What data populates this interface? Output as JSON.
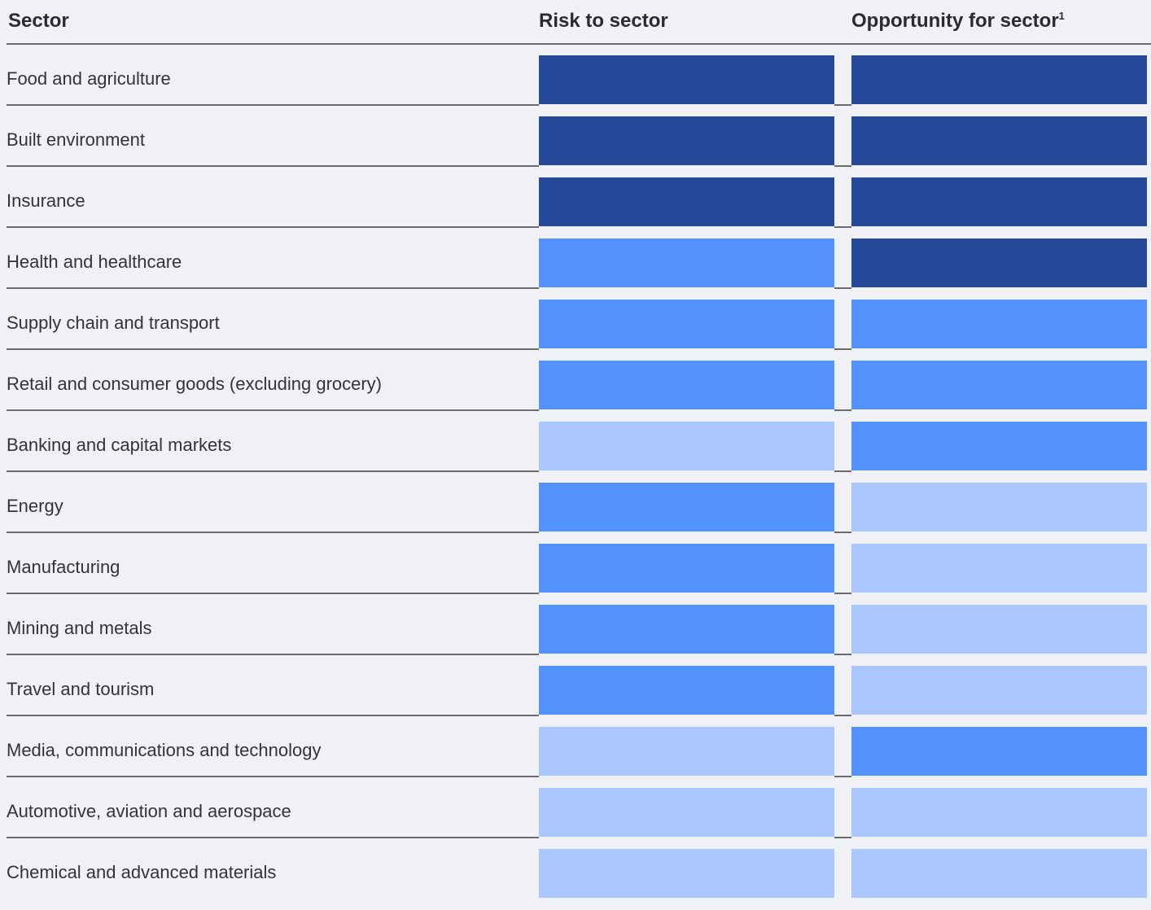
{
  "chart_data": {
    "type": "table",
    "columns": [
      "Sector",
      "Risk to sector",
      "Opportunity for sector"
    ],
    "opportunity_footnote": "1",
    "levels": {
      "high": "#264a99",
      "medium": "#5391fc",
      "low": "#a9c7fc"
    },
    "rows": [
      {
        "sector": "Food and agriculture",
        "risk": "high",
        "opportunity": "high"
      },
      {
        "sector": "Built environment",
        "risk": "high",
        "opportunity": "high"
      },
      {
        "sector": "Insurance",
        "risk": "high",
        "opportunity": "high"
      },
      {
        "sector": "Health and healthcare",
        "risk": "medium",
        "opportunity": "high"
      },
      {
        "sector": "Supply chain and transport",
        "risk": "medium",
        "opportunity": "medium"
      },
      {
        "sector": "Retail and consumer goods (excluding grocery)",
        "risk": "medium",
        "opportunity": "medium"
      },
      {
        "sector": "Banking and capital markets",
        "risk": "low",
        "opportunity": "medium"
      },
      {
        "sector": "Energy",
        "risk": "medium",
        "opportunity": "low"
      },
      {
        "sector": "Manufacturing",
        "risk": "medium",
        "opportunity": "low"
      },
      {
        "sector": "Mining and metals",
        "risk": "medium",
        "opportunity": "low"
      },
      {
        "sector": "Travel and tourism",
        "risk": "medium",
        "opportunity": "low"
      },
      {
        "sector": "Media, communications and technology",
        "risk": "low",
        "opportunity": "medium"
      },
      {
        "sector": "Automotive, aviation and aerospace",
        "risk": "low",
        "opportunity": "low"
      },
      {
        "sector": "Chemical and advanced materials",
        "risk": "low",
        "opportunity": "low"
      }
    ]
  }
}
